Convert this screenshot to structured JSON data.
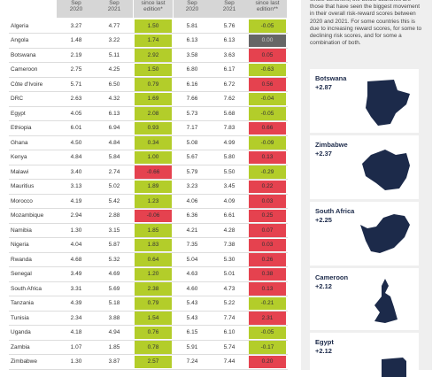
{
  "table": {
    "columns": [
      "Sep\n2020",
      "Sep\n2021",
      "since last\nedition*",
      "Sep\n2020",
      "Sep\n2021",
      "since last\nedition**"
    ],
    "rows": [
      [
        "Algeria",
        "3.27",
        "4.77",
        "1.50",
        "5.81",
        "5.76",
        "-0.05"
      ],
      [
        "Angola",
        "1.48",
        "3.22",
        "1.74",
        "6.13",
        "6.13",
        "0.00"
      ],
      [
        "Botswana",
        "2.19",
        "5.11",
        "2.92",
        "3.58",
        "3.63",
        "0.05"
      ],
      [
        "Cameroon",
        "2.75",
        "4.25",
        "1.50",
        "6.80",
        "6.17",
        "-0.63"
      ],
      [
        "Côte d'Ivoire",
        "5.71",
        "6.50",
        "0.79",
        "6.16",
        "6.72",
        "0.56"
      ],
      [
        "DRC",
        "2.63",
        "4.32",
        "1.69",
        "7.66",
        "7.62",
        "-0.04"
      ],
      [
        "Egypt",
        "4.05",
        "6.13",
        "2.08",
        "5.73",
        "5.68",
        "-0.05"
      ],
      [
        "Ethiopia",
        "6.01",
        "6.94",
        "0.93",
        "7.17",
        "7.83",
        "0.66"
      ],
      [
        "Ghana",
        "4.50",
        "4.84",
        "0.34",
        "5.08",
        "4.99",
        "-0.09"
      ],
      [
        "Kenya",
        "4.84",
        "5.84",
        "1.00",
        "5.67",
        "5.80",
        "0.13"
      ],
      [
        "Malawi",
        "3.40",
        "2.74",
        "-0.66",
        "5.79",
        "5.50",
        "-0.29"
      ],
      [
        "Mauritius",
        "3.13",
        "5.02",
        "1.89",
        "3.23",
        "3.45",
        "0.22"
      ],
      [
        "Morocco",
        "4.19",
        "5.42",
        "1.23",
        "4.06",
        "4.09",
        "0.03"
      ],
      [
        "Mozambique",
        "2.94",
        "2.88",
        "-0.06",
        "6.36",
        "6.61",
        "0.25"
      ],
      [
        "Namibia",
        "1.30",
        "3.15",
        "1.85",
        "4.21",
        "4.28",
        "0.07"
      ],
      [
        "Nigeria",
        "4.04",
        "5.87",
        "1.83",
        "7.35",
        "7.38",
        "0.03"
      ],
      [
        "Rwanda",
        "4.68",
        "5.32",
        "0.64",
        "5.04",
        "5.30",
        "0.26"
      ],
      [
        "Senegal",
        "3.49",
        "4.69",
        "1.20",
        "4.63",
        "5.01",
        "0.38"
      ],
      [
        "South Africa",
        "3.31",
        "5.69",
        "2.38",
        "4.60",
        "4.73",
        "0.13"
      ],
      [
        "Tanzania",
        "4.39",
        "5.18",
        "0.79",
        "5.43",
        "5.22",
        "-0.21"
      ],
      [
        "Tunisia",
        "2.34",
        "3.88",
        "1.54",
        "5.43",
        "7.74",
        "2.31"
      ],
      [
        "Uganda",
        "4.18",
        "4.94",
        "0.76",
        "6.15",
        "6.10",
        "-0.05"
      ],
      [
        "Zambia",
        "1.07",
        "1.85",
        "0.78",
        "5.91",
        "5.74",
        "-0.17"
      ],
      [
        "Zimbabwe",
        "1.30",
        "3.87",
        "2.57",
        "7.24",
        "7.44",
        "0.20"
      ]
    ]
  },
  "sidebar": {
    "intro": "whole continent, the below countries are those that have seen the biggest movement in their overall risk-reward scores between 2020 and 2021. For some countries this is due to increasing reward scores, for some to declining risk scores, and for some a combination of both.",
    "cards": [
      {
        "name": "Botswana",
        "value": "+2.87"
      },
      {
        "name": "Zimbabwe",
        "value": "+2.37"
      },
      {
        "name": "South Africa",
        "value": "+2.25"
      },
      {
        "name": "Cameroon",
        "value": "+2.12"
      },
      {
        "name": "Egypt",
        "value": "+2.12"
      }
    ]
  }
}
